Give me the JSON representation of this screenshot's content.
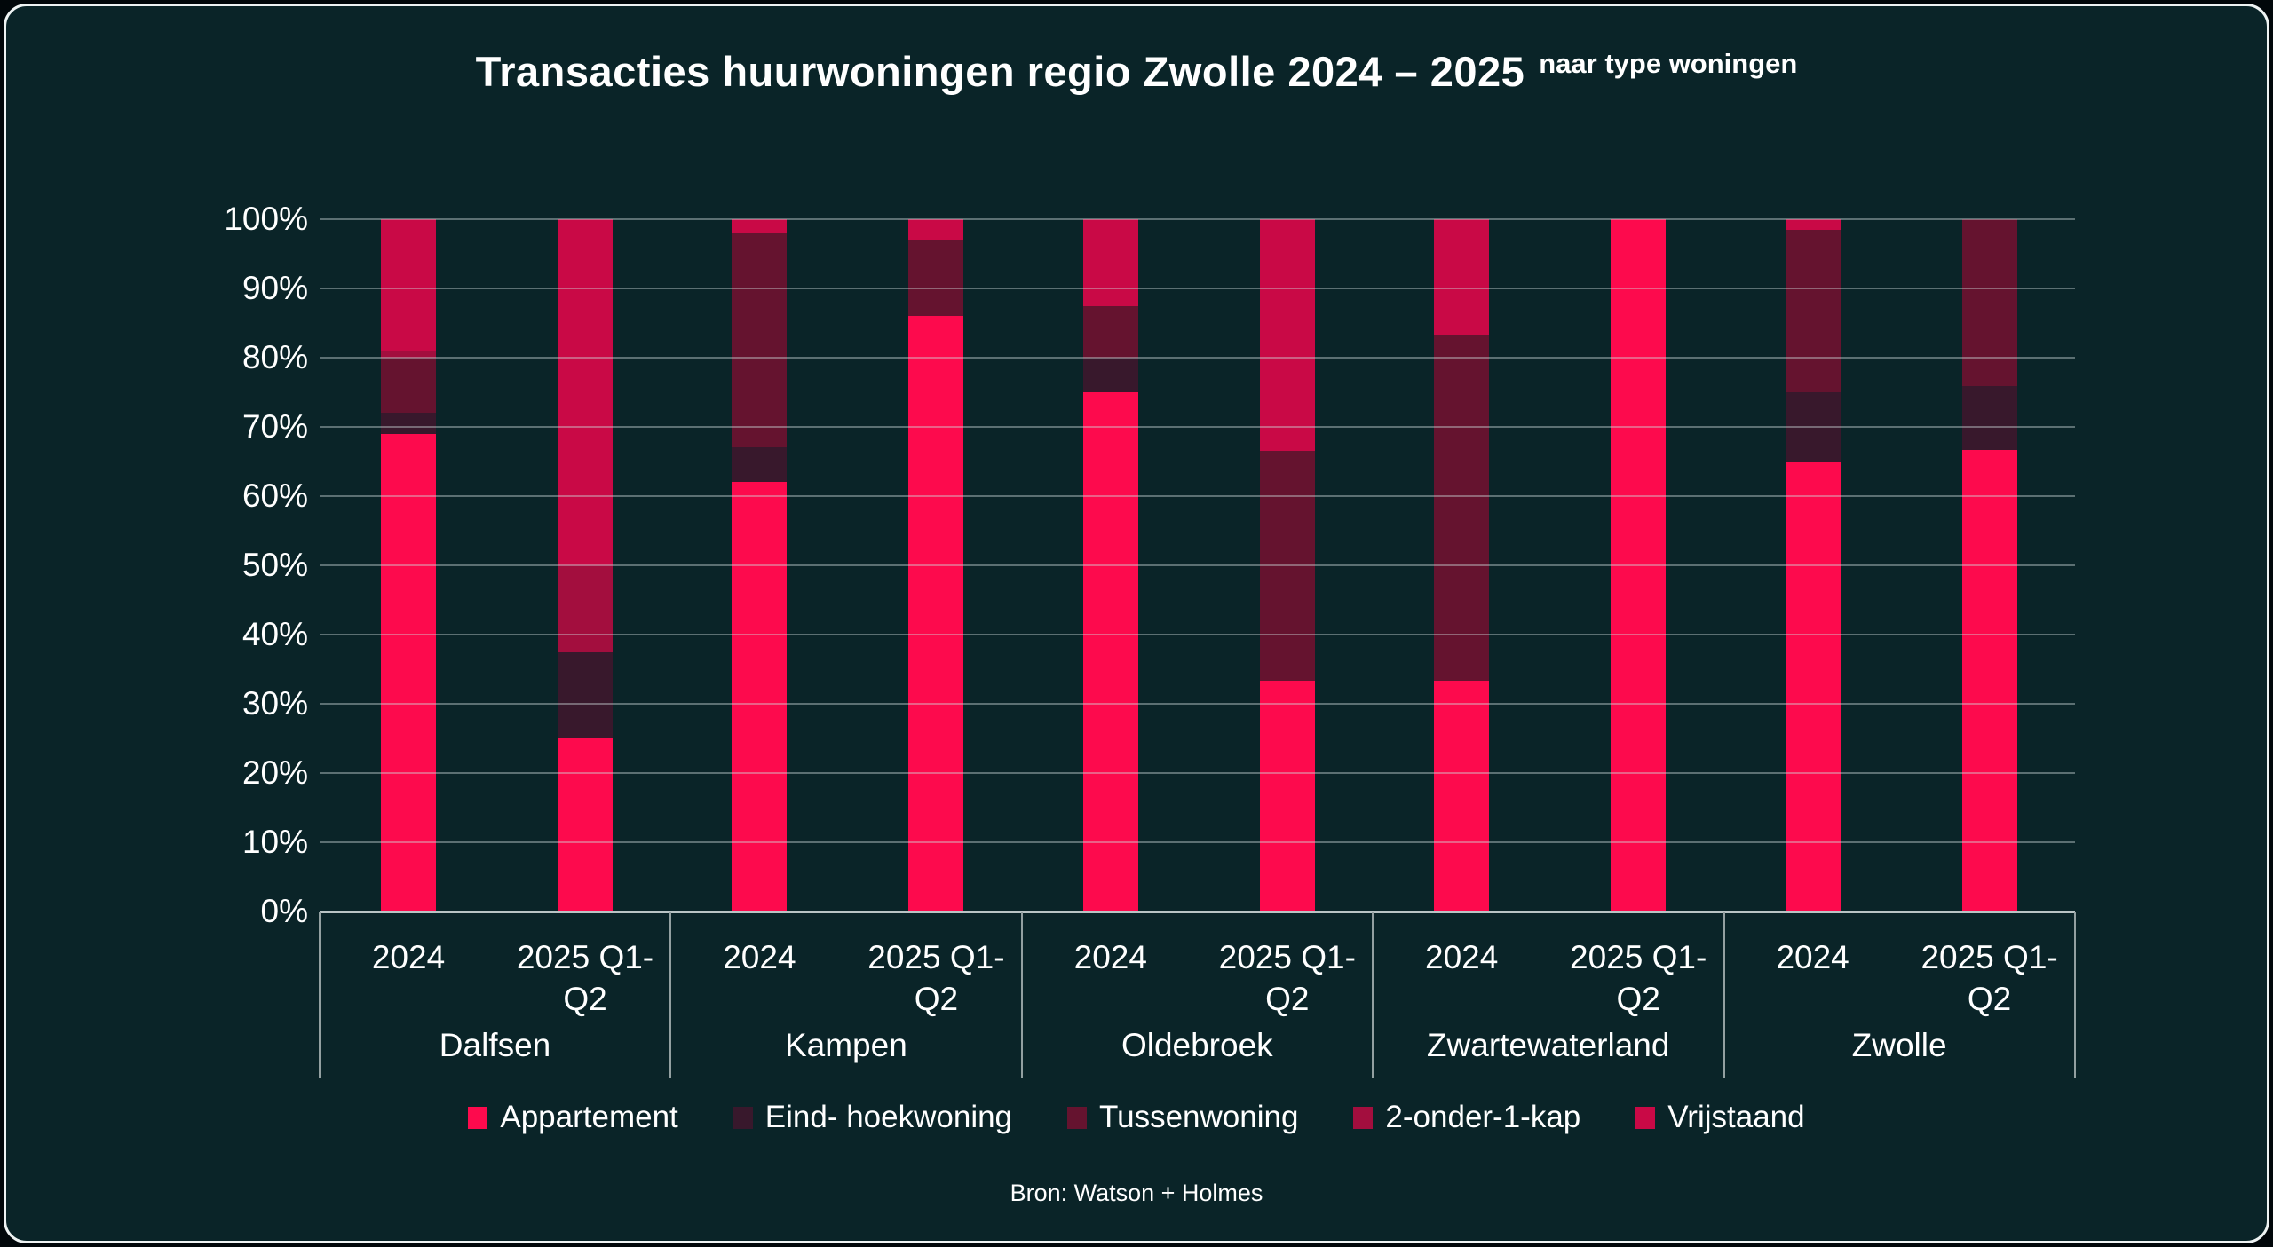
{
  "title": {
    "main": "Transacties huurwoningen regio Zwolle 2024 – 2025",
    "suffix": "naar type woningen"
  },
  "source": "Bron: Watson + Holmes",
  "colors": {
    "background": "#0a2428",
    "frame_border": "#eef3f3",
    "text": "#ffffff",
    "gridline": "rgba(208,219,219,0.42)",
    "axis_line": "#b9c4c5",
    "separator": "#93a0a1"
  },
  "y_axis": {
    "tick_labels": [
      "100%",
      "90%",
      "80%",
      "70%",
      "60%",
      "50%",
      "40%",
      "30%",
      "20%",
      "10%",
      "0%"
    ],
    "min": 0,
    "max": 100
  },
  "x_axis": {
    "period_label_lines": [
      [
        "2024"
      ],
      [
        "2025 Q1-",
        "Q2"
      ]
    ],
    "group_labels": [
      "Dalfsen",
      "Kampen",
      "Oldebroek",
      "Zwartewaterland",
      "Zwolle"
    ]
  },
  "legend": [
    {
      "label": "Appartement",
      "color": "#fd0a4d"
    },
    {
      "label": "Eind- hoekwoning",
      "color": "#38182c"
    },
    {
      "label": "Tussenwoning",
      "color": "#65132f"
    },
    {
      "label": "2-onder-1-kap",
      "color": "#a30e3e"
    },
    {
      "label": "Vrijstaand",
      "color": "#c90946"
    }
  ],
  "chart_data": {
    "type": "bar",
    "stacked": true,
    "percent": true,
    "title": "Transacties huurwoningen regio Zwolle 2024 – 2025 naar type woningen",
    "groups": [
      "Dalfsen",
      "Kampen",
      "Oldebroek",
      "Zwartewaterland",
      "Zwolle"
    ],
    "categories": [
      "Dalfsen 2024",
      "Dalfsen 2025 Q1-Q2",
      "Kampen 2024",
      "Kampen 2025 Q1-Q2",
      "Oldebroek 2024",
      "Oldebroek 2025 Q1-Q2",
      "Zwartewaterland 2024",
      "Zwartewaterland 2025 Q1-Q2",
      "Zwolle 2024",
      "Zwolle 2025 Q1-Q2"
    ],
    "series": [
      {
        "name": "Appartement",
        "color": "#fd0a4d",
        "values": [
          69,
          25,
          62,
          86,
          75,
          33.3,
          33.3,
          100,
          65,
          66.7
        ]
      },
      {
        "name": "Eind- hoekwoning",
        "color": "#38182c",
        "values": [
          3,
          12.5,
          5,
          0,
          5,
          0,
          0,
          0,
          10,
          9.2
        ]
      },
      {
        "name": "Tussenwoning",
        "color": "#65132f",
        "values": [
          8,
          0,
          31,
          11,
          7.5,
          33.3,
          50,
          0,
          23.5,
          24.1
        ]
      },
      {
        "name": "2-onder-1-kap",
        "color": "#a30e3e",
        "values": [
          1,
          12.5,
          0,
          0,
          0,
          0,
          0,
          0,
          0,
          0
        ]
      },
      {
        "name": "Vrijstaand",
        "color": "#c90946",
        "values": [
          19,
          50,
          2,
          3,
          12.5,
          33.4,
          16.7,
          0,
          1.5,
          0
        ]
      }
    ],
    "xlabel": "",
    "ylabel": "",
    "ylim": [
      0,
      100
    ],
    "grid": true,
    "legend_position": "bottom"
  }
}
